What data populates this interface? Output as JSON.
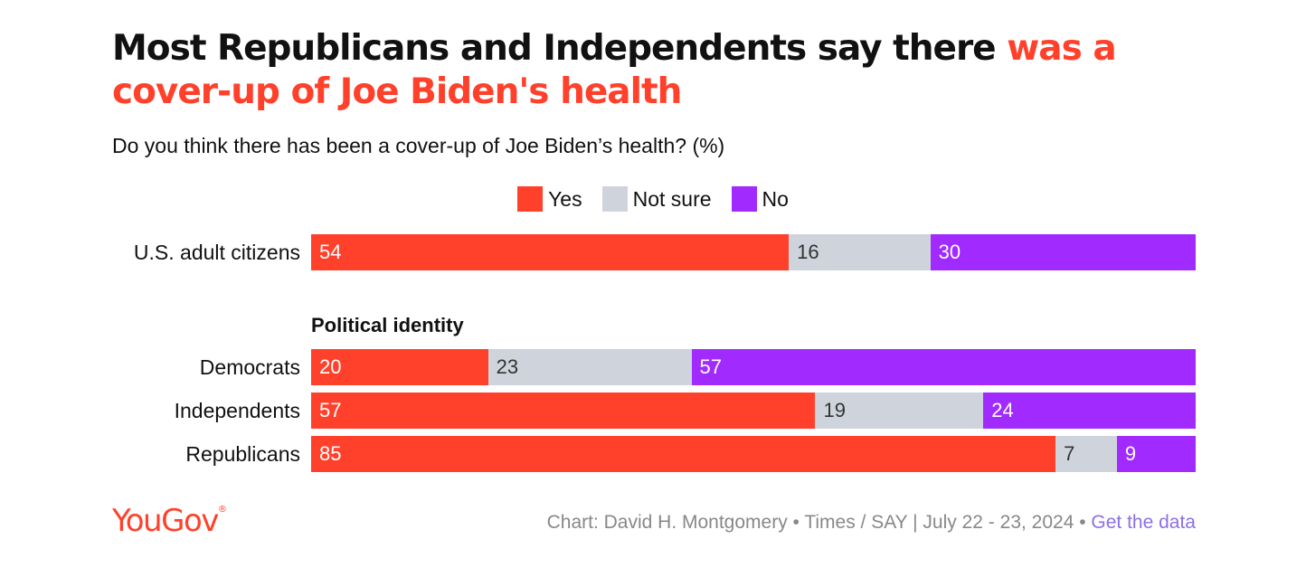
{
  "title": {
    "part1": "Most Republicans and Independents say there ",
    "part2": "was a cover-up of Joe Biden's health"
  },
  "subtitle": "Do you think there has been a cover-up of Joe Biden’s health? (%)",
  "colors": {
    "yes": "#ff412c",
    "not_sure": "#cfd3dc",
    "no": "#a12bff",
    "accent": "#ff412c",
    "link": "#8c6fe8"
  },
  "chart_data": {
    "type": "bar",
    "orientation": "horizontal",
    "stacked": true,
    "unit": "%",
    "legend": [
      "Yes",
      "Not sure",
      "No"
    ],
    "legend_position": "top-center",
    "categories": [
      "U.S. adult citizens",
      "Democrats",
      "Independents",
      "Republicans"
    ],
    "group_label": "Political identity",
    "series": [
      {
        "name": "Yes",
        "values": [
          54,
          20,
          57,
          85
        ]
      },
      {
        "name": "Not sure",
        "values": [
          16,
          23,
          19,
          7
        ]
      },
      {
        "name": "No",
        "values": [
          30,
          57,
          24,
          9
        ]
      }
    ]
  },
  "footer": {
    "logo": "YouGov",
    "logo_mark": "®",
    "credit": "Chart: David H. Montgomery • Times / SAY | July 22 - 23, 2024 • ",
    "link": "Get the data"
  }
}
